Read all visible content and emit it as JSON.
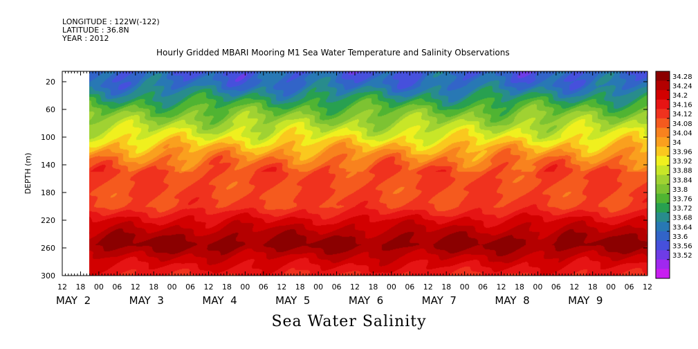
{
  "header": {
    "longitude": "LONGITUDE : 122W(-122)",
    "latitude": "LATITUDE : 36.8N",
    "year": "YEAR : 2012"
  },
  "title": "Hourly Gridded MBARI Mooring M1 Sea Water Temperature and Salinity Observations",
  "footer_title": "Sea Water Salinity",
  "chart_data": {
    "type": "heatmap",
    "title": "Hourly Gridded MBARI Mooring M1 Sea Water Temperature and Salinity Observations",
    "variable": "Sea Water Salinity",
    "ylabel": "DEPTH (m)",
    "xlabel": "",
    "y_ticks": [
      20,
      60,
      100,
      140,
      180,
      220,
      260,
      300
    ],
    "ylim": [
      300,
      5
    ],
    "y_inverted": true,
    "x_hour_ticks": [
      "12",
      "18",
      "00",
      "06",
      "12",
      "18",
      "00",
      "06",
      "12",
      "18",
      "00",
      "06",
      "12",
      "18",
      "00",
      "06",
      "12",
      "18",
      "00",
      "06",
      "12",
      "18",
      "00",
      "06",
      "12",
      "18",
      "00",
      "06",
      "12",
      "18",
      "00",
      "06",
      "12"
    ],
    "x_date_labels": [
      "MAY  2",
      "MAY  3",
      "MAY  4",
      "MAY  5",
      "MAY  6",
      "MAY  7",
      "MAY  8",
      "MAY  9"
    ],
    "xlim": [
      "2012-05-01 12:00",
      "2012-05-09 12:00"
    ],
    "data_start": "2012-05-01 21:00",
    "colorbar_labels": [
      "34.28",
      "34.24",
      "34.2",
      "34.16",
      "34.12",
      "34.08",
      "34.04",
      "34",
      "33.96",
      "33.92",
      "33.88",
      "33.84",
      "33.8",
      "33.76",
      "33.72",
      "33.68",
      "33.64",
      "33.6",
      "33.56",
      "33.52"
    ],
    "colorbar_range": [
      33.52,
      34.3
    ],
    "profile": [
      {
        "depth": 5,
        "value": 33.67
      },
      {
        "depth": 25,
        "value": 33.7
      },
      {
        "depth": 40,
        "value": 33.76
      },
      {
        "depth": 60,
        "value": 33.84
      },
      {
        "depth": 80,
        "value": 33.9
      },
      {
        "depth": 100,
        "value": 33.96
      },
      {
        "depth": 115,
        "value": 34.02
      },
      {
        "depth": 130,
        "value": 34.07
      },
      {
        "depth": 150,
        "value": 34.12
      },
      {
        "depth": 180,
        "value": 34.12
      },
      {
        "depth": 200,
        "value": 34.13
      },
      {
        "depth": 220,
        "value": 34.2
      },
      {
        "depth": 240,
        "value": 34.25
      },
      {
        "depth": 255,
        "value": 34.28
      },
      {
        "depth": 275,
        "value": 34.22
      },
      {
        "depth": 300,
        "value": 34.16
      }
    ],
    "colors": [
      "#8b0000",
      "#b40000",
      "#d20000",
      "#e61414",
      "#f0321e",
      "#f55a1e",
      "#f8821e",
      "#faa01e",
      "#fac81e",
      "#f0f01e",
      "#c8e628",
      "#a0d232",
      "#7dc332",
      "#50b432",
      "#28a050",
      "#288c8c",
      "#2878b4",
      "#3264c8",
      "#4650dc",
      "#6e3ce6",
      "#a028f0",
      "#c81ef0"
    ]
  }
}
